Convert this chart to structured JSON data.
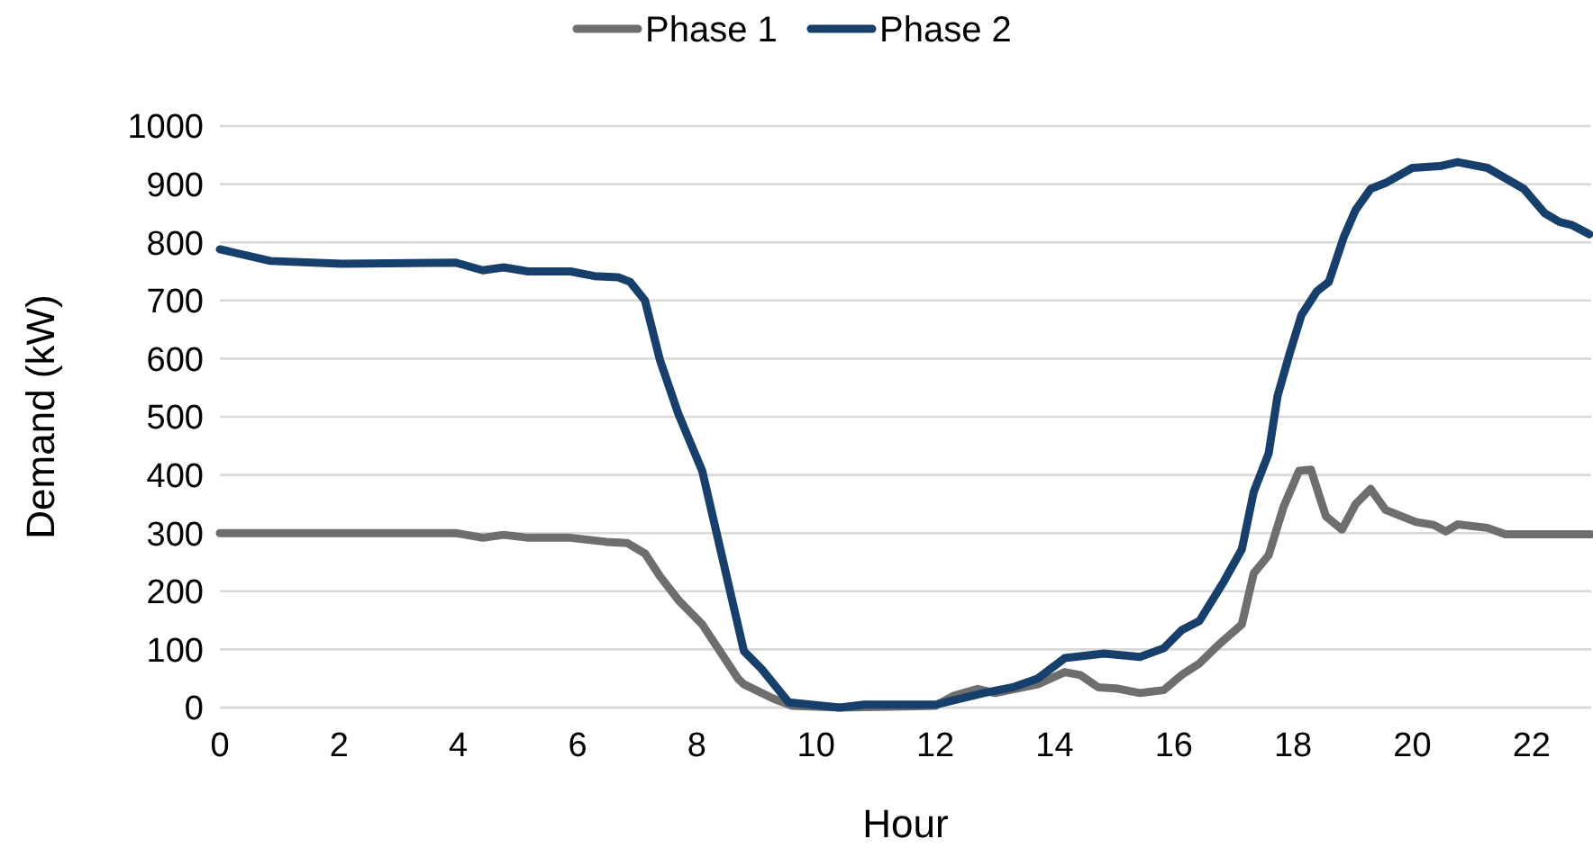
{
  "chart_data": {
    "type": "line",
    "xlabel": "Hour",
    "ylabel": "Demand (kW)",
    "xlim": [
      0,
      23
    ],
    "xticks": [
      0,
      2,
      4,
      6,
      8,
      10,
      12,
      14,
      16,
      18,
      20,
      22
    ],
    "ylim": [
      0,
      1000
    ],
    "yticks": [
      0,
      100,
      200,
      300,
      400,
      500,
      600,
      700,
      800,
      900,
      1000
    ],
    "grid": "y",
    "legend": "top",
    "marker": "none",
    "line_style": "solid",
    "series": [
      {
        "name": "Phase 1",
        "color": "#6e6e6e",
        "x": [
          0,
          3.96,
          4.41,
          4.76,
          5.17,
          5.88,
          6.48,
          6.83,
          7.13,
          7.38,
          7.69,
          8.09,
          8.69,
          8.79,
          9.29,
          9.6,
          10.4,
          12,
          12.3,
          12.71,
          13,
          13.72,
          14.17,
          14.43,
          14.73,
          15.03,
          15.43,
          15.83,
          16.13,
          16.43,
          16.74,
          17.14,
          17.34,
          17.59,
          17.84,
          18.1,
          18.3,
          18.55,
          18.82,
          19.05,
          19.3,
          19.55,
          20.06,
          20.36,
          20.56,
          20.76,
          21.26,
          21.56,
          23
        ],
        "values": [
          300,
          300,
          292,
          297,
          292,
          292,
          285,
          283,
          265,
          226,
          185,
          143,
          50,
          40,
          15,
          3,
          0,
          3,
          20,
          32,
          25,
          40,
          61,
          56,
          35,
          33,
          25,
          30,
          56,
          76,
          107,
          143,
          231,
          262,
          345,
          407,
          409,
          329,
          306,
          350,
          376,
          340,
          319,
          314,
          303,
          315,
          309,
          298,
          298
        ]
      },
      {
        "name": "Phase 2",
        "color": "#163f6b",
        "x": [
          0,
          0.85,
          2.05,
          3.96,
          4.41,
          4.76,
          5.17,
          5.88,
          6.28,
          6.68,
          6.88,
          7.13,
          7.38,
          7.69,
          8.09,
          8.79,
          9.09,
          9.54,
          10.4,
          10.8,
          12,
          12.81,
          13.3,
          13.72,
          14.17,
          14.83,
          15.43,
          15.83,
          16.13,
          16.43,
          16.84,
          17.14,
          17.34,
          17.59,
          17.74,
          17.94,
          18.14,
          18.4,
          18.6,
          18.85,
          19.05,
          19.3,
          19.55,
          20,
          20.46,
          20.76,
          21.26,
          21.87,
          22.22,
          22.47,
          22.67,
          22.97
        ],
        "values": [
          788,
          768,
          763,
          765,
          752,
          757,
          750,
          750,
          742,
          740,
          732,
          700,
          598,
          505,
          407,
          97,
          66,
          9,
          0,
          5,
          5,
          25,
          35,
          50,
          85,
          93,
          87,
          102,
          133,
          149,
          217,
          272,
          371,
          437,
          536,
          608,
          675,
          716,
          732,
          809,
          856,
          892,
          902,
          928,
          931,
          938,
          928,
          892,
          850,
          835,
          830,
          814
        ]
      }
    ]
  }
}
